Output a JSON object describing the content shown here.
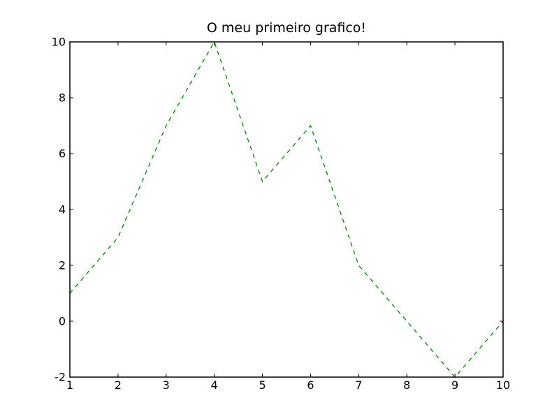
{
  "chart_data": {
    "type": "line",
    "title": "O meu primeiro grafico!",
    "xlabel": "",
    "ylabel": "",
    "xlim": [
      1,
      10
    ],
    "ylim": [
      -2,
      10
    ],
    "x_ticks": [
      "1",
      "2",
      "3",
      "4",
      "5",
      "6",
      "7",
      "8",
      "9",
      "10"
    ],
    "y_ticks": [
      "-2",
      "0",
      "2",
      "4",
      "6",
      "8",
      "10"
    ],
    "grid": false,
    "series": [
      {
        "color": "#008000",
        "line_style": "dashed",
        "x": [
          1,
          2,
          3,
          4,
          5,
          6,
          7,
          8,
          9,
          10
        ],
        "y": [
          1,
          3,
          7,
          10,
          5,
          7,
          2,
          0,
          -2,
          0
        ]
      }
    ]
  }
}
